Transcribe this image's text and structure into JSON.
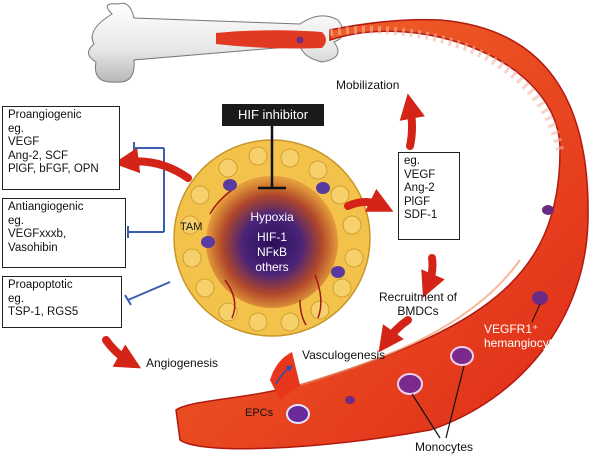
{
  "hif_inhibitor": "HIF inhibitor",
  "proangiogenic": {
    "lines": [
      "Proangiogenic",
      "eg.",
      "VEGF",
      "Ang-2, SCF",
      "PlGF, bFGF, OPN"
    ]
  },
  "antiangiogenic": {
    "lines": [
      "Antiangiogenic",
      "eg.",
      "VEGFxxxb,",
      "Vasohibin"
    ]
  },
  "proapoptotic": {
    "lines": [
      "Proapoptotic",
      "eg.",
      "TSP-1, RGS5"
    ]
  },
  "factors": {
    "lines": [
      "eg.",
      "VEGF",
      "Ang-2",
      "PlGF",
      "SDF-1"
    ]
  },
  "tumor": {
    "line1": "Hypoxia",
    "line2": "HIF-1",
    "line3": "NFκB",
    "line4": "others"
  },
  "labels": {
    "tam": "TAM",
    "mobilization": "Mobilization",
    "recruitment_line1": "Recruitment of",
    "recruitment_line2": "BMDCs",
    "angiogenesis": "Angiogenesis",
    "vasculogenesis": "Vasculogenesis",
    "vegfr1_line1": "VEGFR1⁺",
    "vegfr1_line2": "hemangiocytes",
    "epcs": "EPCs",
    "monocytes": "Monocytes"
  },
  "colors": {
    "vessel": "#e8361c",
    "arrow": "#d42418",
    "inhibit": "#3a5fb0",
    "tumor_core": "#3a1b6a",
    "cell": "#f3c24a"
  }
}
